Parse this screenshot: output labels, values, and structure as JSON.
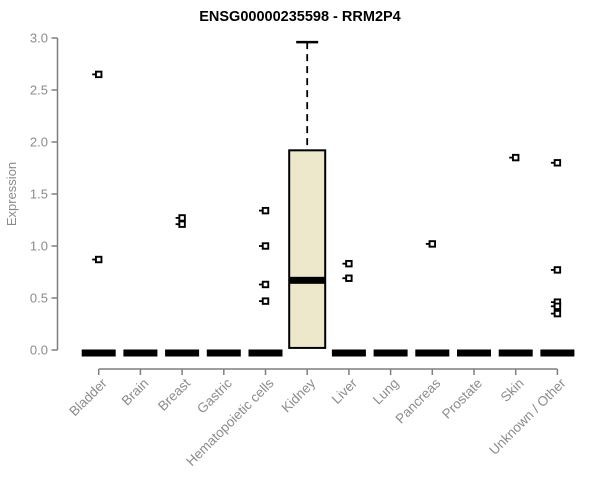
{
  "chart_data": {
    "type": "boxplot",
    "title": "ENSG00000235598 - RRM2P4",
    "ylabel": "Expression",
    "xlabel": "",
    "ylim": [
      0.0,
      3.0
    ],
    "yticks": [
      0.0,
      0.5,
      1.0,
      1.5,
      2.0,
      2.5,
      3.0
    ],
    "ytick_labels": [
      "0.0",
      "0.5",
      "1.0",
      "1.5",
      "2.0",
      "2.5",
      "3.0"
    ],
    "grid": false,
    "legend": null,
    "categories": [
      "Bladder",
      "Brain",
      "Breast",
      "Gastric",
      "Hematopoietic cells",
      "Kidney",
      "Liver",
      "Lung",
      "Pancreas",
      "Prostate",
      "Skin",
      "Unknown / Other"
    ],
    "boxes": [
      {
        "category": "Bladder",
        "q1": 0,
        "median": 0,
        "q3": 0,
        "whisker_low": 0,
        "whisker_high": 0,
        "outliers": [
          2.65,
          0.87
        ]
      },
      {
        "category": "Brain",
        "q1": 0,
        "median": 0,
        "q3": 0,
        "whisker_low": 0,
        "whisker_high": 0,
        "outliers": []
      },
      {
        "category": "Breast",
        "q1": 0,
        "median": 0,
        "q3": 0,
        "whisker_low": 0,
        "whisker_high": 0,
        "outliers": [
          1.27,
          1.21
        ]
      },
      {
        "category": "Gastric",
        "q1": 0,
        "median": 0,
        "q3": 0,
        "whisker_low": 0,
        "whisker_high": 0,
        "outliers": []
      },
      {
        "category": "Hematopoietic cells",
        "q1": 0,
        "median": 0,
        "q3": 0,
        "whisker_low": 0,
        "whisker_high": 0,
        "outliers": [
          1.34,
          1.0,
          0.63,
          0.47
        ]
      },
      {
        "category": "Kidney",
        "q1": 0.02,
        "median": 0.67,
        "q3": 1.92,
        "whisker_low": 0.02,
        "whisker_high": 2.96,
        "outliers": []
      },
      {
        "category": "Liver",
        "q1": 0,
        "median": 0,
        "q3": 0,
        "whisker_low": 0,
        "whisker_high": 0,
        "outliers": [
          0.83,
          0.69
        ]
      },
      {
        "category": "Lung",
        "q1": 0,
        "median": 0,
        "q3": 0,
        "whisker_low": 0,
        "whisker_high": 0,
        "outliers": []
      },
      {
        "category": "Pancreas",
        "q1": 0,
        "median": 0,
        "q3": 0,
        "whisker_low": 0,
        "whisker_high": 0,
        "outliers": [
          1.02
        ]
      },
      {
        "category": "Prostate",
        "q1": 0,
        "median": 0,
        "q3": 0,
        "whisker_low": 0,
        "whisker_high": 0,
        "outliers": []
      },
      {
        "category": "Skin",
        "q1": 0,
        "median": 0,
        "q3": 0,
        "whisker_low": 0,
        "whisker_high": 0,
        "outliers": [
          1.85
        ]
      },
      {
        "category": "Unknown / Other",
        "q1": 0,
        "median": 0,
        "q3": 0,
        "whisker_low": 0,
        "whisker_high": 0,
        "outliers": [
          1.8,
          0.77,
          0.46,
          0.42,
          0.35
        ]
      }
    ],
    "colors": {
      "box_fill": "#EDE7CB",
      "box_border": "#000000",
      "median": "#000000",
      "outlier": "#000000",
      "axis": "#7F7F7F",
      "tick_label": "#8C8C8C",
      "title": "#000000",
      "background": "#FFFFFF"
    }
  }
}
